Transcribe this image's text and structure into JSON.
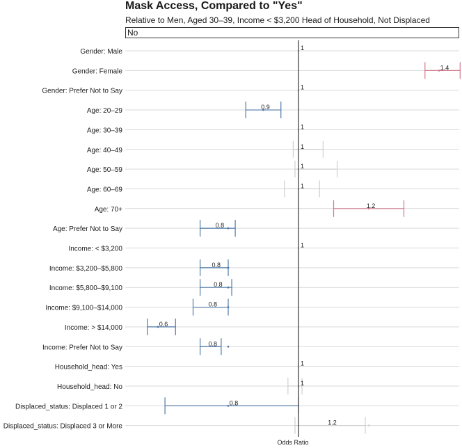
{
  "chart_data": {
    "type": "forest",
    "title": "Mask Access, Compared to \"Yes\"",
    "subtitle": "Relative to Men, Aged 30–39, Income < $3,200 Head of Household, Not Displaced",
    "facet_label": "No",
    "xlabel": "Odds Ratio",
    "reference_value": 1,
    "xlim": [
      0.5,
      1.5
    ],
    "rows": [
      {
        "label": "Gender: Male",
        "estimate": 1,
        "lower": 1,
        "upper": 1,
        "display": "1",
        "significant": false,
        "color": "#cfcfcf"
      },
      {
        "label": "Gender: Female",
        "estimate": 1.4,
        "lower": 1.36,
        "upper": 1.46,
        "display": "1.4",
        "significant": true,
        "color": "#d07a8c"
      },
      {
        "label": "Gender: Prefer Not to Say",
        "estimate": 1,
        "lower": 1,
        "upper": 1,
        "display": "1",
        "significant": false,
        "color": "#cfcfcf"
      },
      {
        "label": "Age: 20–29",
        "estimate": 0.9,
        "lower": 0.85,
        "upper": 0.95,
        "display": "0.9",
        "significant": true,
        "color": "#4e79a7"
      },
      {
        "label": "Age: 30–39",
        "estimate": 1,
        "lower": 1,
        "upper": 1,
        "display": "1",
        "significant": false,
        "color": "#cfcfcf"
      },
      {
        "label": "Age: 40–49",
        "estimate": 1,
        "lower": 0.985,
        "upper": 1.07,
        "display": "1",
        "significant": false,
        "color": "#cfcfcf"
      },
      {
        "label": "Age: 50–59",
        "estimate": 1,
        "lower": 0.99,
        "upper": 1.11,
        "display": "1",
        "significant": false,
        "color": "#cfcfcf"
      },
      {
        "label": "Age: 60–69",
        "estimate": 1,
        "lower": 0.96,
        "upper": 1.06,
        "display": "1",
        "significant": false,
        "color": "#cfcfcf"
      },
      {
        "label": "Age: 70+",
        "estimate": 1.2,
        "lower": 1.1,
        "upper": 1.3,
        "display": "1.2",
        "significant": true,
        "color": "#d07a8c"
      },
      {
        "label": "Age: Prefer Not to Say",
        "estimate": 0.8,
        "lower": 0.72,
        "upper": 0.82,
        "display": "0.8",
        "significant": true,
        "color": "#4e79a7"
      },
      {
        "label": "Income: < $3,200",
        "estimate": 1,
        "lower": 1,
        "upper": 1,
        "display": "1",
        "significant": false,
        "color": "#cfcfcf"
      },
      {
        "label": "Income: $3,200–$5,800",
        "estimate": 0.8,
        "lower": 0.72,
        "upper": 0.8,
        "display": "0.8",
        "significant": true,
        "color": "#4e79a7"
      },
      {
        "label": "Income: $5,800–$9,100",
        "estimate": 0.8,
        "lower": 0.72,
        "upper": 0.81,
        "display": "0.8",
        "significant": true,
        "color": "#4e79a7"
      },
      {
        "label": "Income: $9,100–$14,000",
        "estimate": 0.8,
        "lower": 0.7,
        "upper": 0.8,
        "display": "0.8",
        "significant": true,
        "color": "#4e79a7"
      },
      {
        "label": "Income: > $14,000",
        "estimate": 0.6,
        "lower": 0.57,
        "upper": 0.65,
        "display": "0.6",
        "significant": true,
        "color": "#4e79a7"
      },
      {
        "label": "Income: Prefer Not to Say",
        "estimate": 0.8,
        "lower": 0.72,
        "upper": 0.78,
        "display": "0.8",
        "significant": true,
        "color": "#4e79a7"
      },
      {
        "label": "Household_head: Yes",
        "estimate": 1,
        "lower": 1,
        "upper": 1,
        "display": "1",
        "significant": false,
        "color": "#cfcfcf"
      },
      {
        "label": "Household_head: No",
        "estimate": 1,
        "lower": 0.97,
        "upper": 1.01,
        "display": "1",
        "significant": false,
        "color": "#cfcfcf"
      },
      {
        "label": "Displaced_status: Displaced 1 or 2",
        "estimate": 0.8,
        "lower": 0.62,
        "upper": 1.0,
        "display": "0.8",
        "significant": true,
        "color": "#4e79a7"
      },
      {
        "label": "Displaced_status: Displaced 3 or More",
        "estimate": 1.2,
        "lower": 0.99,
        "upper": 1.19,
        "display": "1.2",
        "significant": false,
        "color": "#cfcfcf"
      }
    ]
  }
}
